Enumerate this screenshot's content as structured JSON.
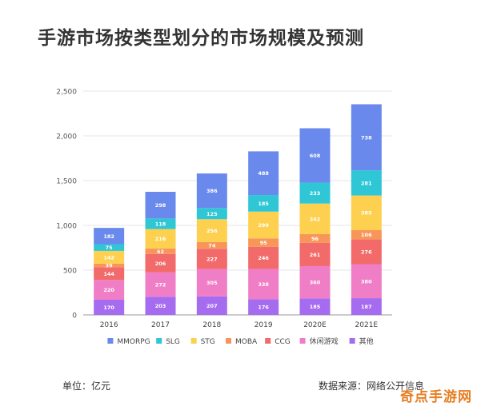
{
  "title": "手游市场按类型划分的市场规模及预测",
  "footer": {
    "unit": "单位：亿元",
    "source": "数据来源：网络公开信息"
  },
  "watermark": "奇点手游网",
  "chart_data": {
    "type": "bar",
    "stacked": true,
    "categories": [
      "2016",
      "2017",
      "2018",
      "2019",
      "2020E",
      "2021E"
    ],
    "ylim": [
      0,
      2500
    ],
    "yticks": [
      0,
      500,
      1000,
      1500,
      2000,
      2500
    ],
    "ytick_labels": [
      "0",
      "500",
      "1,000",
      "1,500",
      "2,000",
      "2,500"
    ],
    "grid": true,
    "legend_position": "bottom",
    "series": [
      {
        "name": "其他",
        "color": "#a66cf0",
        "values": [
          170,
          203,
          207,
          176,
          185,
          187
        ]
      },
      {
        "name": "休闲游戏",
        "color": "#f07ec6",
        "values": [
          220,
          272,
          305,
          338,
          360,
          380
        ]
      },
      {
        "name": "CCG",
        "color": "#f26a6a",
        "values": [
          144,
          206,
          227,
          246,
          261,
          276
        ]
      },
      {
        "name": "MOBA",
        "color": "#f8965a",
        "values": [
          39,
          62,
          74,
          95,
          96,
          106
        ]
      },
      {
        "name": "STG",
        "color": "#fdd04f",
        "values": [
          142,
          216,
          256,
          299,
          342,
          385
        ]
      },
      {
        "name": "SLG",
        "color": "#2fc6d6",
        "values": [
          75,
          118,
          125,
          185,
          233,
          281
        ]
      },
      {
        "name": "MMORPG",
        "color": "#6a89ec",
        "values": [
          182,
          298,
          386,
          488,
          608,
          738
        ]
      }
    ],
    "legend_order": [
      "MMORPG",
      "SLG",
      "STG",
      "MOBA",
      "CCG",
      "休闲游戏",
      "其他"
    ]
  }
}
